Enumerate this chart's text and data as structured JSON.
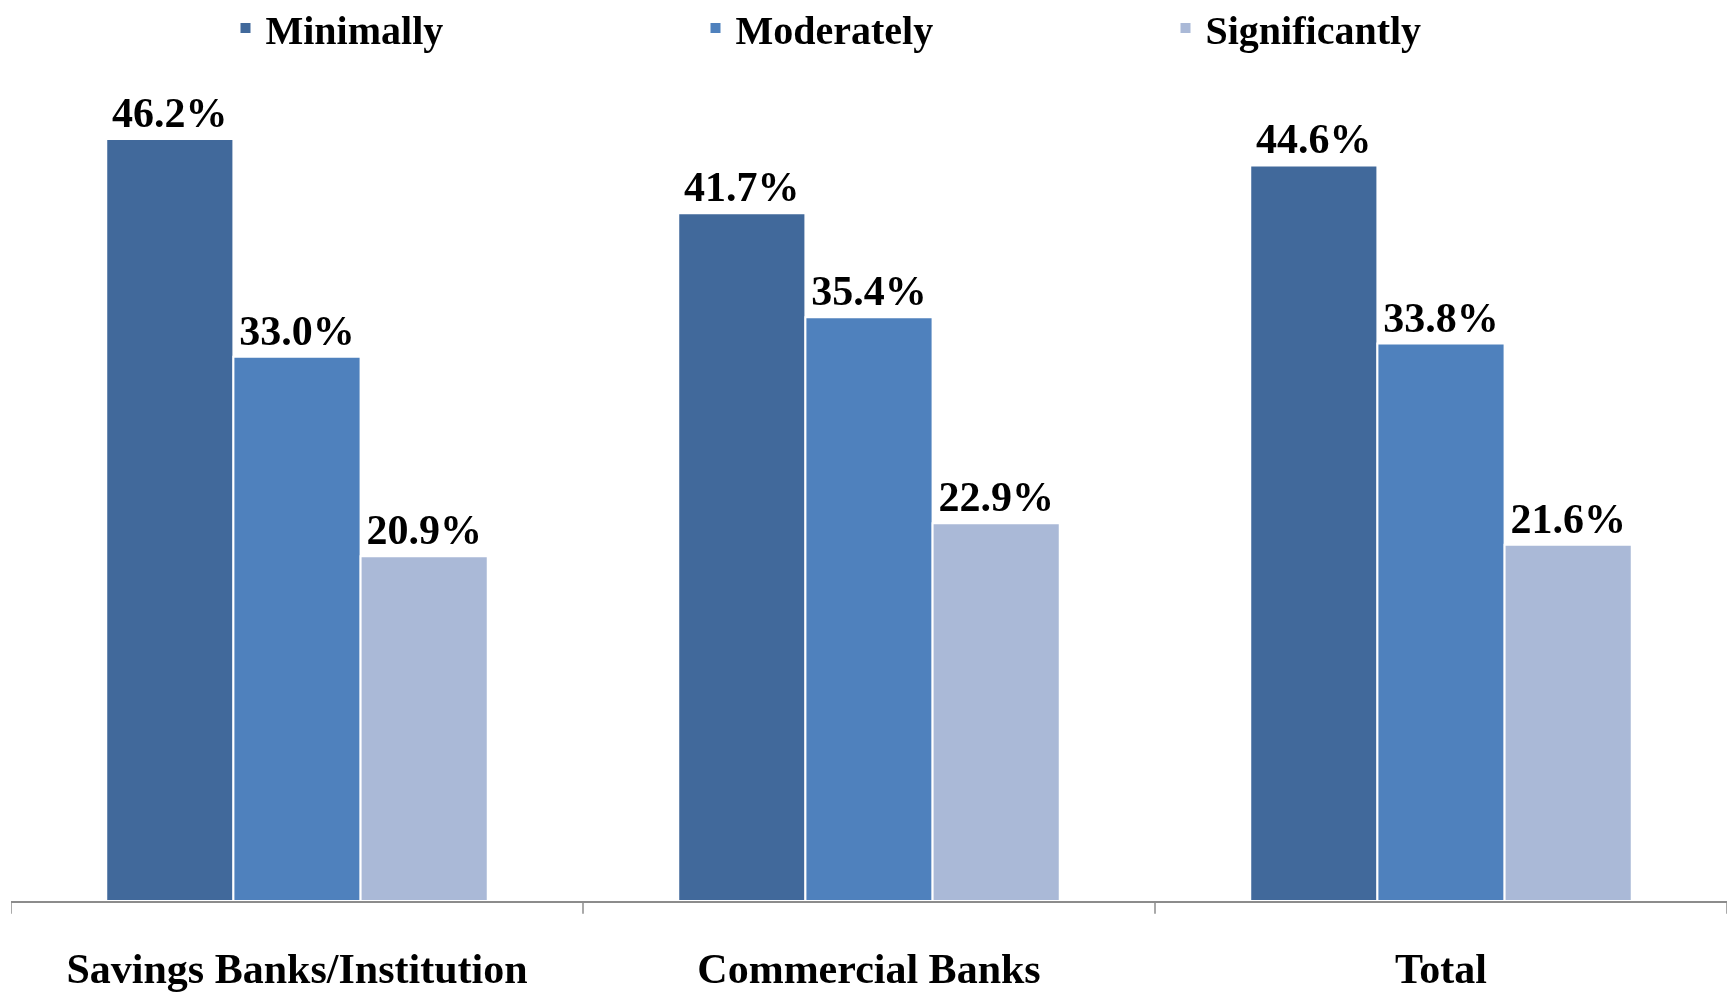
{
  "chart_data": {
    "type": "bar",
    "categories": [
      "Savings Banks/Institution",
      "Commercial Banks",
      "Total"
    ],
    "series": [
      {
        "name": "Minimally",
        "color": "#41699b",
        "values": [
          46.2,
          41.7,
          44.6
        ],
        "value_labels": [
          "46.2%",
          "41.7%",
          "44.6%"
        ]
      },
      {
        "name": "Moderately",
        "color": "#4f81bd",
        "values": [
          33.0,
          35.4,
          33.8
        ],
        "value_labels": [
          "33.0%",
          "35.4%",
          "33.8%"
        ]
      },
      {
        "name": "Significantly",
        "color": "#aab9d7",
        "values": [
          20.9,
          22.9,
          21.6
        ],
        "value_labels": [
          "20.9%",
          "22.9%",
          "21.6%"
        ]
      }
    ],
    "legend": "top"
  }
}
